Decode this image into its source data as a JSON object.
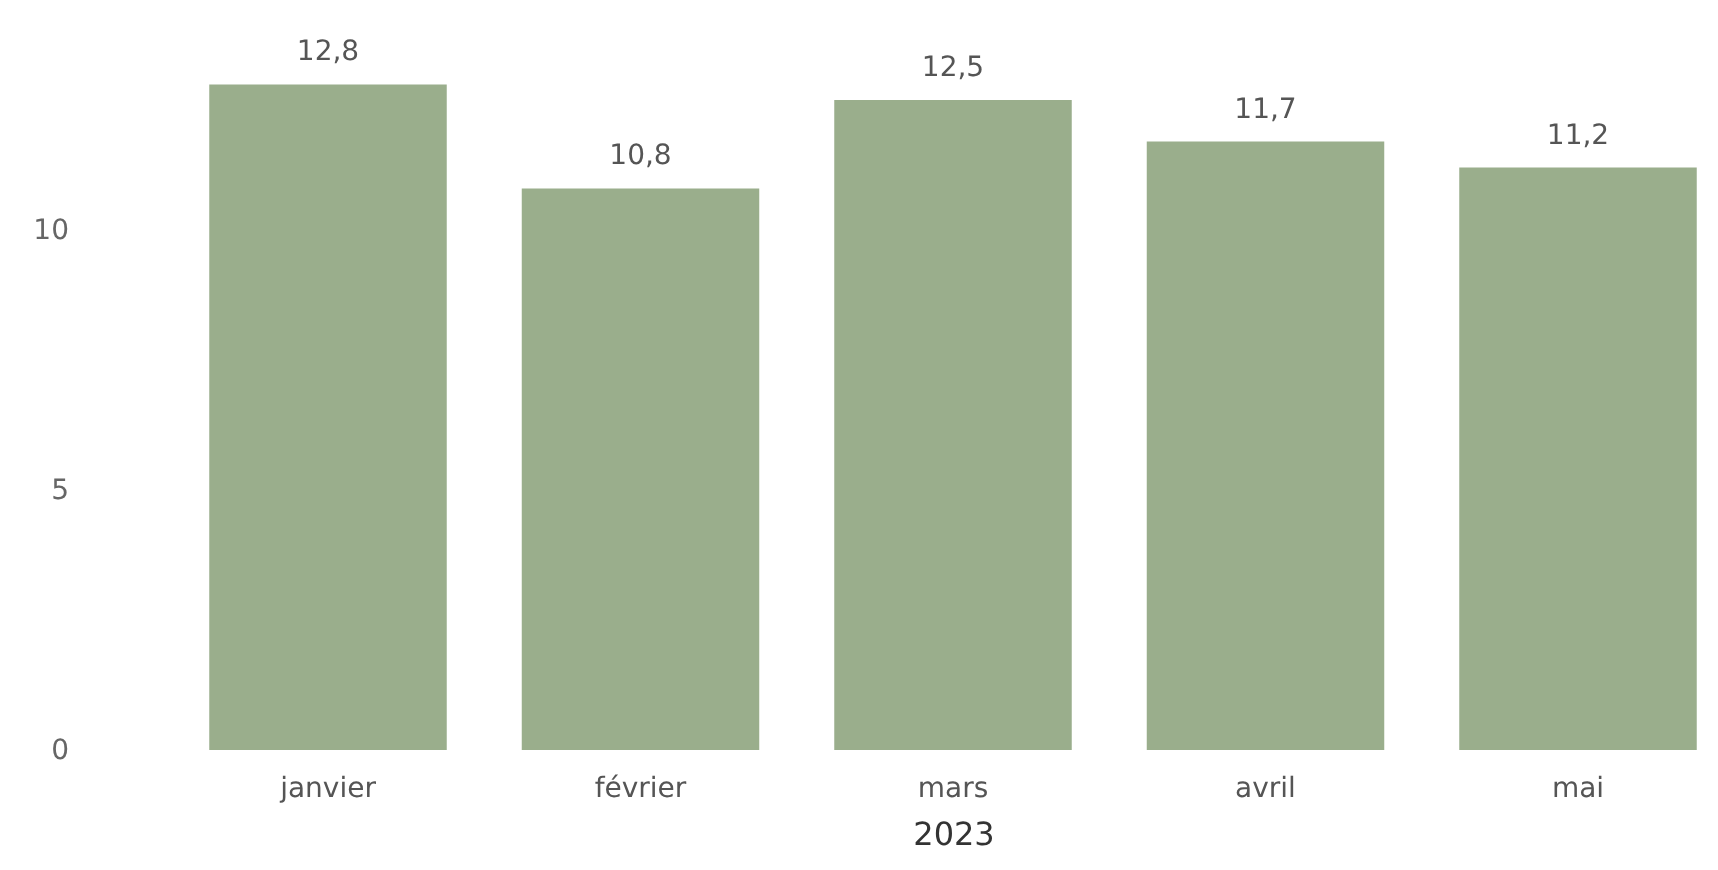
{
  "chart_data": {
    "type": "bar",
    "xlabel": "2023",
    "categories": [
      "janvier",
      "février",
      "mars",
      "avril",
      "mai"
    ],
    "series": [
      {
        "color": "#9aae8c",
        "values": [
          12.8,
          10.8,
          12.5,
          11.7,
          11.2
        ]
      }
    ],
    "value_labels": [
      "12,8",
      "10,8",
      "12,5",
      "11,7",
      "11,2"
    ],
    "ylim": [
      0,
      13
    ],
    "yticks": [
      0,
      5,
      10
    ],
    "grid": false
  }
}
